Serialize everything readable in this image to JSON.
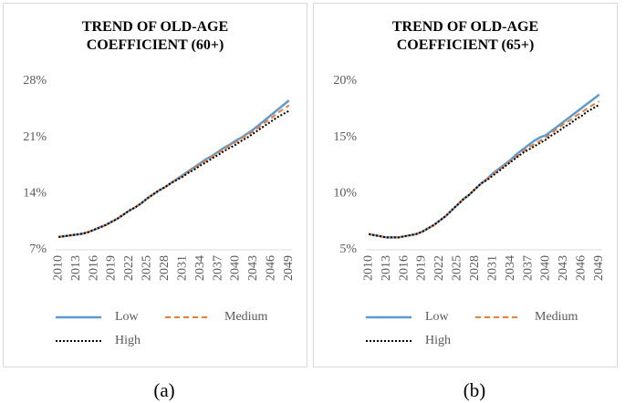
{
  "chart_data": [
    {
      "type": "line",
      "title": "TREND OF OLD-AGE COEFFICIENT (60+)",
      "caption": "(a)",
      "x": [
        2010,
        2011,
        2012,
        2013,
        2014,
        2015,
        2016,
        2017,
        2018,
        2019,
        2020,
        2021,
        2022,
        2023,
        2024,
        2025,
        2026,
        2027,
        2028,
        2029,
        2030,
        2031,
        2032,
        2033,
        2034,
        2035,
        2036,
        2037,
        2038,
        2039,
        2040,
        2041,
        2042,
        2043,
        2044,
        2045,
        2046,
        2047,
        2048,
        2049
      ],
      "xlim": [
        2010,
        2049
      ],
      "xticks": [
        2010,
        2013,
        2016,
        2019,
        2022,
        2025,
        2028,
        2031,
        2034,
        2037,
        2040,
        2043,
        2046,
        2049
      ],
      "ylim": [
        7,
        28
      ],
      "yticks": [
        {
          "value": 7,
          "label": "7%"
        },
        {
          "value": 14,
          "label": "14%"
        },
        {
          "value": 21,
          "label": "21%"
        },
        {
          "value": 28,
          "label": "28%"
        }
      ],
      "grid": false,
      "series": [
        {
          "name": "Low",
          "color": "#5b9bd5",
          "dash": "solid",
          "values": [
            8.6,
            8.7,
            8.8,
            8.9,
            9.0,
            9.2,
            9.5,
            9.8,
            10.1,
            10.5,
            10.9,
            11.4,
            11.9,
            12.3,
            12.8,
            13.4,
            13.9,
            14.4,
            14.8,
            15.3,
            15.8,
            16.3,
            16.8,
            17.3,
            17.8,
            18.3,
            18.7,
            19.2,
            19.7,
            20.1,
            20.6,
            21.0,
            21.5,
            22.0,
            22.6,
            23.2,
            23.8,
            24.4,
            25.0,
            25.6
          ]
        },
        {
          "name": "Medium",
          "color": "#ed7d31",
          "dash": "dashed",
          "values": [
            8.6,
            8.7,
            8.8,
            8.9,
            9.0,
            9.2,
            9.5,
            9.8,
            10.1,
            10.5,
            10.9,
            11.4,
            11.9,
            12.3,
            12.8,
            13.4,
            13.9,
            14.4,
            14.8,
            15.3,
            15.8,
            16.2,
            16.7,
            17.2,
            17.7,
            18.1,
            18.6,
            19.1,
            19.5,
            20.0,
            20.4,
            20.9,
            21.3,
            21.8,
            22.3,
            22.9,
            23.4,
            24.0,
            24.5,
            25.0
          ]
        },
        {
          "name": "High",
          "color": "#000000",
          "dash": "dotted",
          "values": [
            8.6,
            8.7,
            8.8,
            8.9,
            9.0,
            9.2,
            9.5,
            9.8,
            10.1,
            10.5,
            10.9,
            11.4,
            11.9,
            12.3,
            12.8,
            13.4,
            13.9,
            14.4,
            14.8,
            15.3,
            15.7,
            16.1,
            16.6,
            17.0,
            17.5,
            17.9,
            18.4,
            18.8,
            19.3,
            19.7,
            20.1,
            20.6,
            21.0,
            21.5,
            22.0,
            22.5,
            23.0,
            23.5,
            23.9,
            24.3
          ]
        }
      ]
    },
    {
      "type": "line",
      "title": "TREND OF OLD-AGE COEFFICIENT (65+)",
      "caption": "(b)",
      "x": [
        2010,
        2011,
        2012,
        2013,
        2014,
        2015,
        2016,
        2017,
        2018,
        2019,
        2020,
        2021,
        2022,
        2023,
        2024,
        2025,
        2026,
        2027,
        2028,
        2029,
        2030,
        2031,
        2032,
        2033,
        2034,
        2035,
        2036,
        2037,
        2038,
        2039,
        2040,
        2041,
        2042,
        2043,
        2044,
        2045,
        2046,
        2047,
        2048,
        2049
      ],
      "xlim": [
        2010,
        2049
      ],
      "xticks": [
        2010,
        2013,
        2016,
        2019,
        2022,
        2025,
        2028,
        2031,
        2034,
        2037,
        2040,
        2043,
        2046,
        2049
      ],
      "ylim": [
        5,
        20
      ],
      "yticks": [
        {
          "value": 5,
          "label": "5%"
        },
        {
          "value": 10,
          "label": "10%"
        },
        {
          "value": 15,
          "label": "15%"
        },
        {
          "value": 20,
          "label": "20%"
        }
      ],
      "grid": false,
      "series": [
        {
          "name": "Low",
          "color": "#5b9bd5",
          "dash": "solid",
          "values": [
            6.4,
            6.3,
            6.2,
            6.1,
            6.1,
            6.1,
            6.2,
            6.3,
            6.4,
            6.6,
            6.9,
            7.2,
            7.6,
            8.0,
            8.5,
            9.0,
            9.5,
            9.9,
            10.4,
            10.9,
            11.3,
            11.8,
            12.2,
            12.6,
            13.0,
            13.5,
            13.9,
            14.3,
            14.7,
            15.0,
            15.2,
            15.6,
            16.0,
            16.4,
            16.8,
            17.2,
            17.6,
            18.0,
            18.4,
            18.8
          ]
        },
        {
          "name": "Medium",
          "color": "#ed7d31",
          "dash": "dashed",
          "values": [
            6.4,
            6.3,
            6.2,
            6.1,
            6.1,
            6.1,
            6.2,
            6.3,
            6.4,
            6.6,
            6.9,
            7.2,
            7.6,
            8.0,
            8.5,
            9.0,
            9.5,
            9.9,
            10.4,
            10.9,
            11.3,
            11.7,
            12.1,
            12.5,
            12.9,
            13.3,
            13.7,
            14.1,
            14.4,
            14.7,
            15.0,
            15.4,
            15.8,
            16.2,
            16.5,
            16.9,
            17.2,
            17.6,
            17.9,
            18.2
          ]
        },
        {
          "name": "High",
          "color": "#000000",
          "dash": "dotted",
          "values": [
            6.4,
            6.3,
            6.2,
            6.1,
            6.1,
            6.1,
            6.2,
            6.3,
            6.4,
            6.6,
            6.9,
            7.2,
            7.6,
            8.0,
            8.5,
            9.0,
            9.5,
            9.9,
            10.4,
            10.9,
            11.2,
            11.6,
            12.0,
            12.4,
            12.8,
            13.2,
            13.6,
            13.9,
            14.2,
            14.5,
            14.8,
            15.2,
            15.5,
            15.9,
            16.2,
            16.6,
            16.9,
            17.3,
            17.6,
            17.9
          ]
        }
      ]
    }
  ]
}
